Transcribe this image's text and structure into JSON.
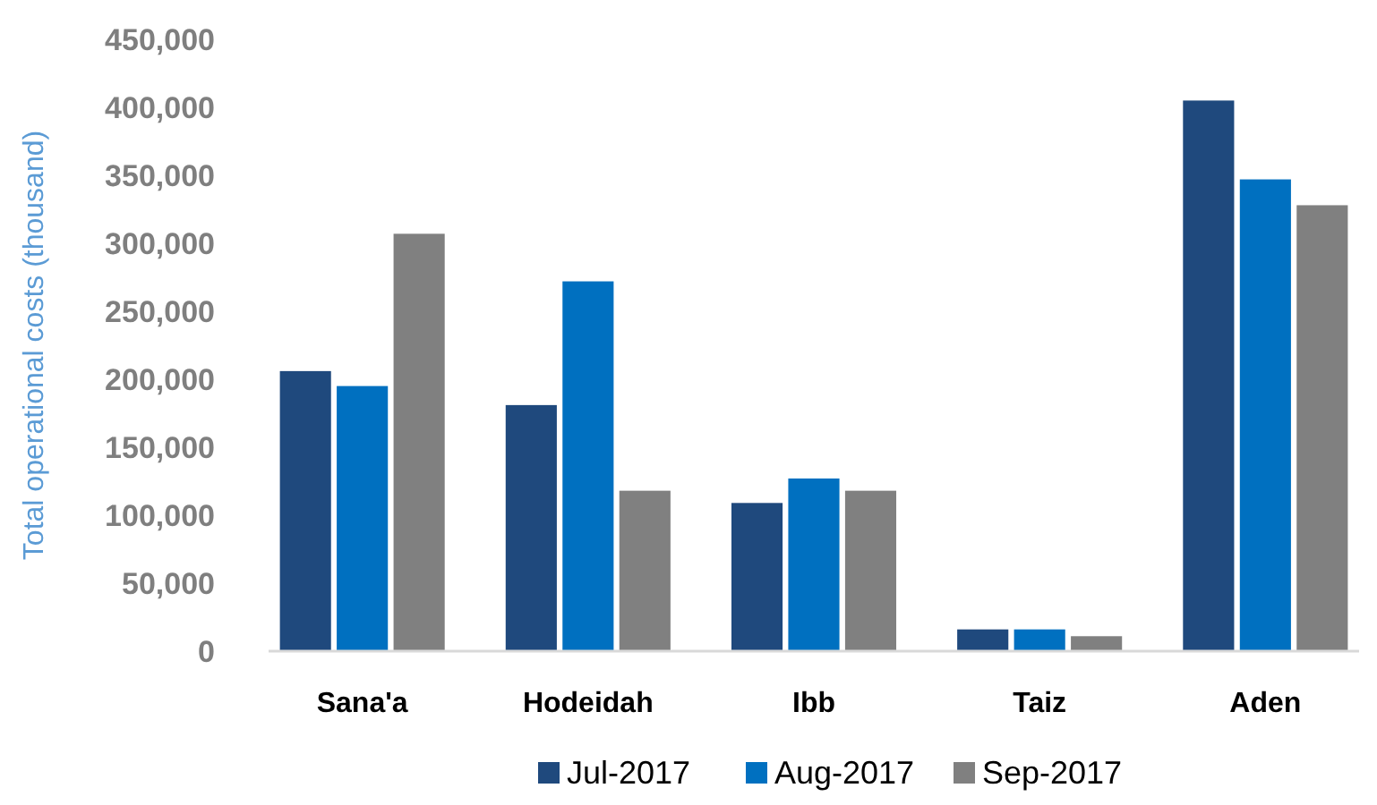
{
  "chart_data": {
    "type": "bar",
    "ylabel": "Total operational costs (thousand)",
    "categories": [
      "Sana'a",
      "Hodeidah",
      "Ibb",
      "Taiz",
      "Aden"
    ],
    "series": [
      {
        "name": "Jul-2017",
        "color": "#1f497d",
        "values": [
          206000,
          181000,
          109000,
          16000,
          405000
        ]
      },
      {
        "name": "Aug-2017",
        "color": "#0070c0",
        "values": [
          195000,
          272000,
          127000,
          16000,
          347000
        ]
      },
      {
        "name": "Sep-2017",
        "color": "#808080",
        "values": [
          307000,
          118000,
          118000,
          11000,
          328000
        ]
      }
    ],
    "ylim": [
      0,
      450000
    ],
    "yticks": [
      {
        "value": 0,
        "label": "0"
      },
      {
        "value": 50000,
        "label": "50,000"
      },
      {
        "value": 100000,
        "label": "100,000"
      },
      {
        "value": 150000,
        "label": "150,000"
      },
      {
        "value": 200000,
        "label": "200,000"
      },
      {
        "value": 250000,
        "label": "250,000"
      },
      {
        "value": 300000,
        "label": "300,000"
      },
      {
        "value": 350000,
        "label": "350,000"
      },
      {
        "value": 400000,
        "label": "400,000"
      },
      {
        "value": 450000,
        "label": "450,000"
      }
    ],
    "grid": false,
    "legend": "bottom"
  }
}
